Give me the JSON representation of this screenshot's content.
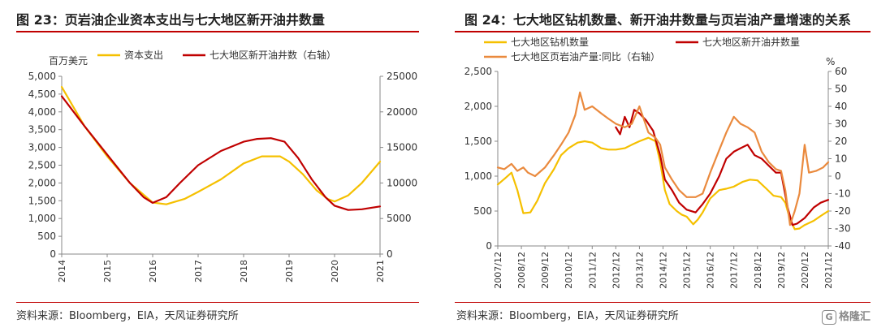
{
  "left": {
    "title": "图 23：页岩油企业资本支出与七大地区新开油井数量",
    "source": "资料来源：Bloomberg，EIA，天风证券研究所"
  },
  "right": {
    "title": "图 24：七大地区钻机数量、新开油井数量与页岩油产量增速的关系",
    "source": "资料来源：Bloomberg，EIA，天风证券研究所"
  },
  "watermark": {
    "text": "格隆汇",
    "icon": "G"
  },
  "colors": {
    "yellow": "#f5c000",
    "red": "#c00000",
    "orange": "#ea8a3e",
    "rule": "#c00000",
    "axis": "#888888"
  },
  "chart_data": [
    {
      "type": "line",
      "unit_label": "百万美元",
      "x": [
        "2014",
        "2015",
        "2016",
        "2017",
        "2018",
        "2019",
        "2020",
        "2021"
      ],
      "xlim": [
        2014,
        2021
      ],
      "ylim": [
        0,
        5000
      ],
      "yticks": [
        "0",
        "500",
        "1,000",
        "1,500",
        "2,000",
        "2,500",
        "3,000",
        "3,500",
        "4,000",
        "4,500",
        "5,000"
      ],
      "y2lim": [
        0,
        25000
      ],
      "y2ticks": [
        "0",
        "5000",
        "10000",
        "15000",
        "20000",
        "25000"
      ],
      "legend_position": "top",
      "series": [
        {
          "name": "资本支出",
          "axis": "left",
          "color": "#f5c000",
          "x": [
            2014.0,
            2014.5,
            2015.0,
            2015.5,
            2016.0,
            2016.3,
            2016.7,
            2017.0,
            2017.5,
            2018.0,
            2018.4,
            2018.8,
            2019.0,
            2019.3,
            2019.6,
            2019.85,
            2020.0,
            2020.3,
            2020.6,
            2021.0
          ],
          "values": [
            4700,
            3600,
            2750,
            2000,
            1450,
            1400,
            1550,
            1750,
            2100,
            2550,
            2750,
            2750,
            2600,
            2250,
            1800,
            1550,
            1480,
            1650,
            2000,
            2600
          ]
        },
        {
          "name": "七大地区新开油井数（右轴）",
          "axis": "right",
          "color": "#c00000",
          "x": [
            2014.0,
            2014.5,
            2015.0,
            2015.5,
            2015.8,
            2016.0,
            2016.3,
            2016.6,
            2017.0,
            2017.5,
            2018.0,
            2018.3,
            2018.6,
            2018.9,
            2019.2,
            2019.5,
            2019.8,
            2020.0,
            2020.3,
            2020.6,
            2021.0
          ],
          "values": [
            22200,
            18000,
            14000,
            10000,
            8000,
            7200,
            8000,
            10000,
            12500,
            14500,
            15800,
            16200,
            16300,
            15800,
            13500,
            10500,
            8000,
            6800,
            6200,
            6300,
            6700
          ]
        }
      ]
    },
    {
      "type": "line",
      "x_labels": [
        "2007/12",
        "2008/12",
        "2009/12",
        "2010/12",
        "2011/12",
        "2012/12",
        "2013/12",
        "2014/12",
        "2015/12",
        "2016/12",
        "2017/12",
        "2018/12",
        "2019/12",
        "2020/12",
        "2021/12"
      ],
      "xlim": [
        2007.92,
        2021.92
      ],
      "ylim": [
        0,
        2500
      ],
      "yticks": [
        "0",
        "500",
        "1,000",
        "1,500",
        "2,000",
        "2,500"
      ],
      "y2_unit": "%",
      "y2lim": [
        -40,
        60
      ],
      "y2ticks": [
        "-40",
        "-30",
        "-20",
        "-10",
        "0",
        "10",
        "20",
        "30",
        "40",
        "50",
        "60"
      ],
      "legend_position": "top",
      "series": [
        {
          "name": "七大地区钻机数量",
          "axis": "left",
          "color": "#f5c000",
          "x": [
            2007.92,
            2008.2,
            2008.5,
            2008.75,
            2009.0,
            2009.3,
            2009.6,
            2009.92,
            2010.3,
            2010.6,
            2010.92,
            2011.3,
            2011.6,
            2011.92,
            2012.3,
            2012.6,
            2012.92,
            2013.3,
            2013.6,
            2013.92,
            2014.3,
            2014.6,
            2014.8,
            2015.0,
            2015.2,
            2015.5,
            2015.7,
            2015.92,
            2016.2,
            2016.4,
            2016.6,
            2016.92,
            2017.3,
            2017.6,
            2017.92,
            2018.3,
            2018.6,
            2018.92,
            2019.3,
            2019.6,
            2019.92,
            2020.1,
            2020.3,
            2020.5,
            2020.7,
            2020.92,
            2021.3,
            2021.6,
            2021.92
          ],
          "values": [
            880,
            960,
            1050,
            800,
            470,
            480,
            650,
            900,
            1100,
            1300,
            1400,
            1480,
            1500,
            1480,
            1400,
            1380,
            1380,
            1400,
            1450,
            1500,
            1550,
            1500,
            1200,
            800,
            600,
            500,
            450,
            420,
            310,
            380,
            480,
            680,
            800,
            820,
            850,
            920,
            950,
            940,
            820,
            720,
            700,
            620,
            380,
            240,
            250,
            300,
            360,
            430,
            500
          ]
        },
        {
          "name": "七大地区新开油井数量",
          "axis": "left",
          "color": "#c00000",
          "x": [
            2012.92,
            2013.1,
            2013.3,
            2013.5,
            2013.7,
            2013.92,
            2014.2,
            2014.5,
            2014.8,
            2015.0,
            2015.3,
            2015.6,
            2015.92,
            2016.3,
            2016.6,
            2016.92,
            2017.3,
            2017.6,
            2017.92,
            2018.2,
            2018.5,
            2018.8,
            2019.1,
            2019.4,
            2019.7,
            2019.92,
            2020.2,
            2020.4,
            2020.6,
            2020.92,
            2021.3,
            2021.6,
            2021.92
          ],
          "values": [
            1700,
            1600,
            1850,
            1700,
            1950,
            1900,
            1800,
            1650,
            1300,
            950,
            800,
            620,
            520,
            480,
            600,
            750,
            1000,
            1250,
            1350,
            1400,
            1450,
            1300,
            1250,
            1150,
            1050,
            1050,
            550,
            300,
            320,
            400,
            550,
            620,
            660
          ]
        },
        {
          "name": "七大地区页岩油产量:同比（右轴）",
          "axis": "right",
          "color": "#ea8a3e",
          "x": [
            2007.92,
            2008.2,
            2008.5,
            2008.75,
            2009.0,
            2009.2,
            2009.5,
            2009.92,
            2010.3,
            2010.6,
            2010.92,
            2011.2,
            2011.4,
            2011.6,
            2011.92,
            2012.3,
            2012.6,
            2012.92,
            2013.3,
            2013.6,
            2013.92,
            2014.3,
            2014.6,
            2014.8,
            2015.0,
            2015.3,
            2015.6,
            2015.92,
            2016.3,
            2016.6,
            2016.92,
            2017.3,
            2017.6,
            2017.92,
            2018.2,
            2018.5,
            2018.8,
            2019.1,
            2019.4,
            2019.7,
            2019.92,
            2020.1,
            2020.3,
            2020.5,
            2020.7,
            2020.92,
            2021.1,
            2021.4,
            2021.7,
            2021.92
          ],
          "values": [
            5,
            4,
            7,
            3,
            5,
            2,
            0,
            5,
            12,
            18,
            25,
            35,
            48,
            38,
            40,
            36,
            33,
            30,
            28,
            30,
            40,
            25,
            22,
            18,
            5,
            -2,
            -8,
            -12,
            -12,
            -10,
            2,
            15,
            25,
            34,
            30,
            28,
            25,
            14,
            8,
            4,
            3,
            -8,
            -28,
            -20,
            -10,
            18,
            2,
            3,
            5,
            8
          ]
        }
      ]
    }
  ]
}
